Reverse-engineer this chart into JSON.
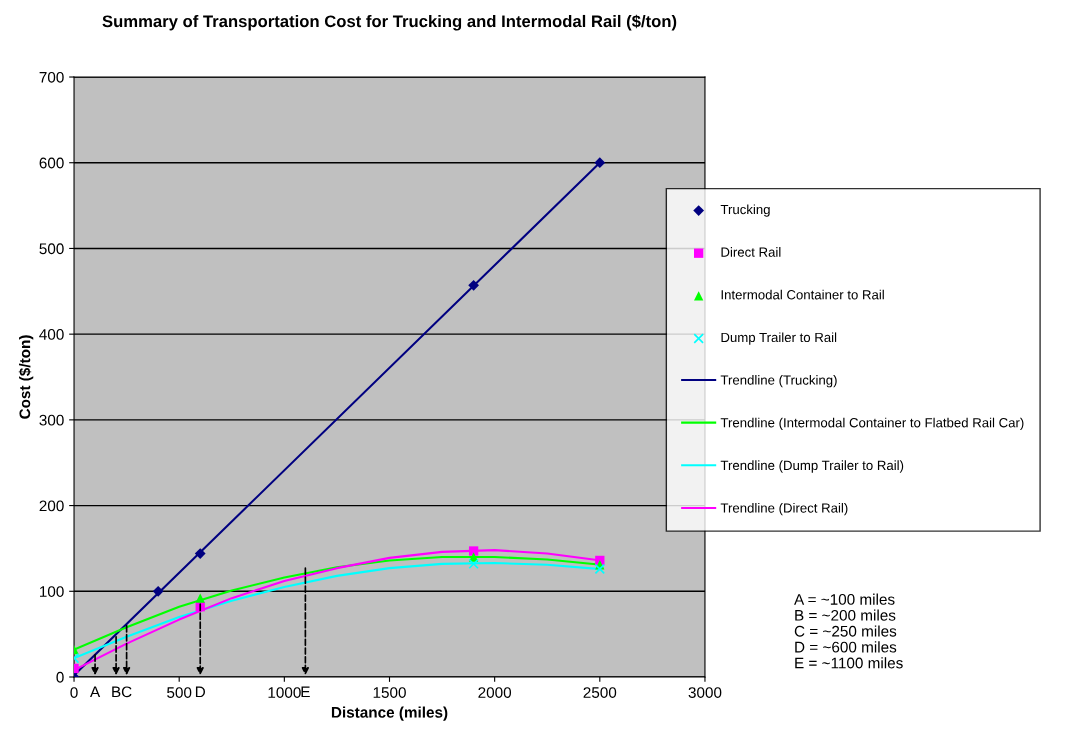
{
  "chart_data": {
    "type": "scatter",
    "title": "Summary of Transportation Cost for Trucking and Intermodal Rail ($/ton)",
    "xlabel": "Distance (miles)",
    "ylabel": "Cost ($/ton)",
    "xlim": [
      0,
      3000
    ],
    "xticks": [
      0,
      500,
      1000,
      1500,
      2000,
      2500,
      3000
    ],
    "ylim": [
      0,
      700
    ],
    "yticks": [
      0,
      100,
      200,
      300,
      400,
      500,
      600,
      700
    ],
    "grid": "y",
    "legend": "right",
    "series": [
      {
        "name": "Trucking",
        "color": "#000080",
        "marker": "diamond",
        "x": [
          0,
          400,
          600,
          1900,
          2500
        ],
        "values": [
          0,
          100,
          144,
          457,
          600
        ]
      },
      {
        "name": "Direct Rail",
        "color": "#ff00ff",
        "marker": "square",
        "x": [
          0,
          600,
          1900,
          2500
        ],
        "values": [
          10,
          82,
          147,
          136
        ]
      },
      {
        "name": "Intermodal Container to Rail",
        "color": "#00ff00",
        "marker": "triangle",
        "x": [
          0,
          600,
          1900,
          2500
        ],
        "values": [
          32,
          92,
          140,
          131
        ]
      },
      {
        "name": "Dump Trailer to Rail",
        "color": "#00ffff",
        "marker": "cross",
        "x": [
          0,
          600,
          1900,
          2500
        ],
        "values": [
          22,
          null,
          132,
          126
        ]
      },
      {
        "type": "line",
        "name": "Trendline (Trucking)",
        "color": "#000080",
        "x": [
          0,
          2500
        ],
        "values": [
          2,
          600
        ]
      },
      {
        "type": "line",
        "name": "Trendline (Intermodal Container to Flatbed Rail Car)",
        "color": "#00ff00",
        "x": [
          0,
          250,
          500,
          750,
          1000,
          1250,
          1500,
          1750,
          2000,
          2250,
          2500
        ],
        "values": [
          32,
          58,
          82,
          101,
          116,
          128,
          136,
          140,
          140,
          137,
          131
        ]
      },
      {
        "type": "line",
        "name": "Trendline (Dump Trailer to Rail)",
        "color": "#00ffff",
        "x": [
          0,
          250,
          500,
          750,
          1000,
          1250,
          1500,
          1750,
          2000,
          2250,
          2500
        ],
        "values": [
          22,
          47,
          70,
          89,
          105,
          118,
          127,
          132,
          133,
          131,
          126
        ]
      },
      {
        "type": "line",
        "name": "Trendline (Direct Rail)",
        "color": "#ff00ff",
        "x": [
          0,
          250,
          500,
          750,
          1000,
          1250,
          1500,
          1750,
          2000,
          2250,
          2500
        ],
        "values": [
          8,
          39,
          67,
          92,
          112,
          127,
          139,
          146,
          148,
          144,
          136
        ]
      }
    ],
    "annotations": [
      {
        "text": "A",
        "x": 100,
        "y": 26
      },
      {
        "text": "B",
        "x": 200,
        "y": 47
      },
      {
        "text": "C",
        "x": 250,
        "y": 60
      },
      {
        "text": "D",
        "x": 600,
        "y": 85
      },
      {
        "text": "E",
        "x": 1100,
        "y": 127
      },
      "A = ~100 miles\nB = ~200 miles\nC = ~250 miles\nD = ~600 miles\nE = ~1100 miles"
    ]
  }
}
